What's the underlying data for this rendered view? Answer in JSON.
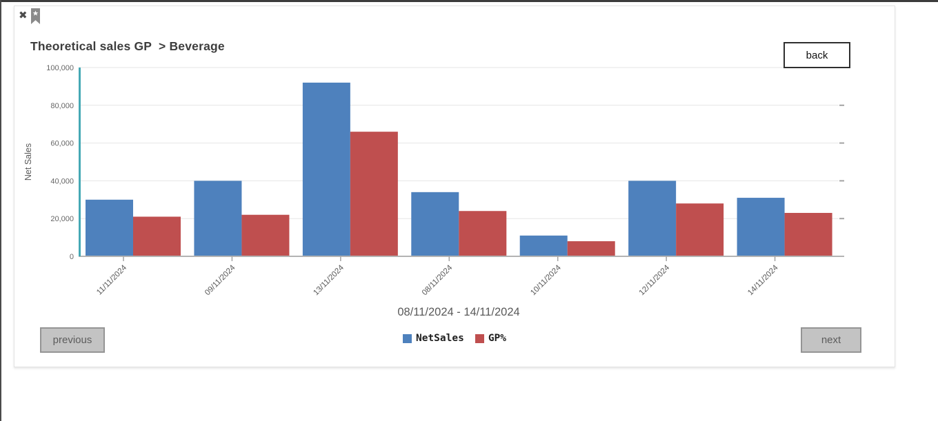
{
  "window": {
    "close_icon": "✖",
    "bookmark_icon": "bookmark-ribbon-with-star"
  },
  "header": {
    "title": "Theoretical sales GP  > Beverage",
    "back_label": "back"
  },
  "pagination": {
    "previous_label": "previous",
    "next_label": "next"
  },
  "chart_data": {
    "type": "bar",
    "title": "Theoretical sales GP > Beverage",
    "categories": [
      "11/11/2024",
      "09/11/2024",
      "13/11/2024",
      "08/11/2024",
      "10/11/2024",
      "12/11/2024",
      "14/11/2024"
    ],
    "series": [
      {
        "name": "NetSales",
        "color": "#4e81bd",
        "values": [
          30000,
          40000,
          92000,
          34000,
          11000,
          40000,
          31000
        ]
      },
      {
        "name": "GP%",
        "color": "#bf4f4f",
        "values": [
          21000,
          22000,
          66000,
          24000,
          8000,
          28000,
          23000
        ]
      }
    ],
    "xlabel": "08/11/2024 - 14/11/2024",
    "ylabel": "Net Sales",
    "ylim": [
      0,
      100000
    ],
    "yticks": [
      0,
      20000,
      40000,
      60000,
      80000,
      100000
    ],
    "ytick_labels": [
      "0",
      "20,000",
      "40,000",
      "60,000",
      "80,000",
      "100,000"
    ],
    "grid": true,
    "legend_position": "bottom",
    "y_axis_color": "#45a9b5",
    "gridline_color": "#e6e6e6",
    "baseline_color": "#b3b3b3",
    "tick_color": "#a3a3a3",
    "tick_label_color": "#666666",
    "axis_title_color": "#595959"
  }
}
